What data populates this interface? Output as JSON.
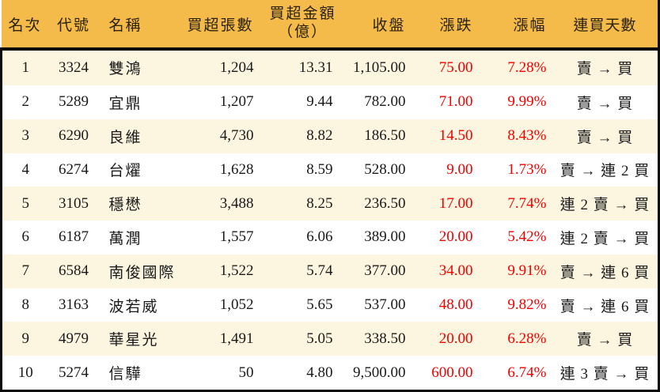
{
  "chart_data": {
    "type": "table",
    "title": "",
    "columns": [
      {
        "id": "rank",
        "label": "名次"
      },
      {
        "id": "code",
        "label": "代號"
      },
      {
        "id": "name",
        "label": "名稱"
      },
      {
        "id": "net-buy-volume",
        "label": "買超張數"
      },
      {
        "id": "net-buy-amount",
        "label": "買超金額",
        "label2": "（億）"
      },
      {
        "id": "close",
        "label": "收盤"
      },
      {
        "id": "change",
        "label": "漲跌"
      },
      {
        "id": "change-pct",
        "label": "漲幅"
      },
      {
        "id": "streak",
        "label": "連買天數"
      }
    ],
    "rows": [
      [
        "1",
        "3324",
        "雙鴻",
        "1,204",
        "13.31",
        "1,105.00",
        "75.00",
        "7.28%",
        "賣 → 買"
      ],
      [
        "2",
        "5289",
        "宜鼎",
        "1,207",
        "9.44",
        "782.00",
        "71.00",
        "9.99%",
        "賣 → 買"
      ],
      [
        "3",
        "6290",
        "良維",
        "4,730",
        "8.82",
        "186.50",
        "14.50",
        "8.43%",
        "賣 → 買"
      ],
      [
        "4",
        "6274",
        "台燿",
        "1,628",
        "8.59",
        "528.00",
        "9.00",
        "1.73%",
        "賣 → 連 2 買"
      ],
      [
        "5",
        "3105",
        "穩懋",
        "3,488",
        "8.25",
        "236.50",
        "17.00",
        "7.74%",
        "連 2 賣 → 買"
      ],
      [
        "6",
        "6187",
        "萬潤",
        "1,557",
        "6.06",
        "389.00",
        "20.00",
        "5.42%",
        "連 2 賣 → 買"
      ],
      [
        "7",
        "6584",
        "南俊國際",
        "1,522",
        "5.74",
        "377.00",
        "34.00",
        "9.91%",
        "賣 → 連 6 買"
      ],
      [
        "8",
        "3163",
        "波若威",
        "1,052",
        "5.65",
        "537.00",
        "48.00",
        "9.82%",
        "賣 → 連 6 買"
      ],
      [
        "9",
        "4979",
        "華星光",
        "1,491",
        "5.05",
        "338.50",
        "20.00",
        "6.28%",
        "賣 → 買"
      ],
      [
        "10",
        "5274",
        "信驊",
        "50",
        "4.80",
        "9,500.00",
        "600.00",
        "6.74%",
        "連 3 賣 → 買"
      ]
    ]
  },
  "colors": {
    "header_bg": "#F4BA4A",
    "row_alt_bg": "#FCF5DF",
    "row_main_bg": "#FFFFFF",
    "border": "#0A0A0A",
    "body_text": "#1A1A1A",
    "up_text": "#F20000"
  }
}
